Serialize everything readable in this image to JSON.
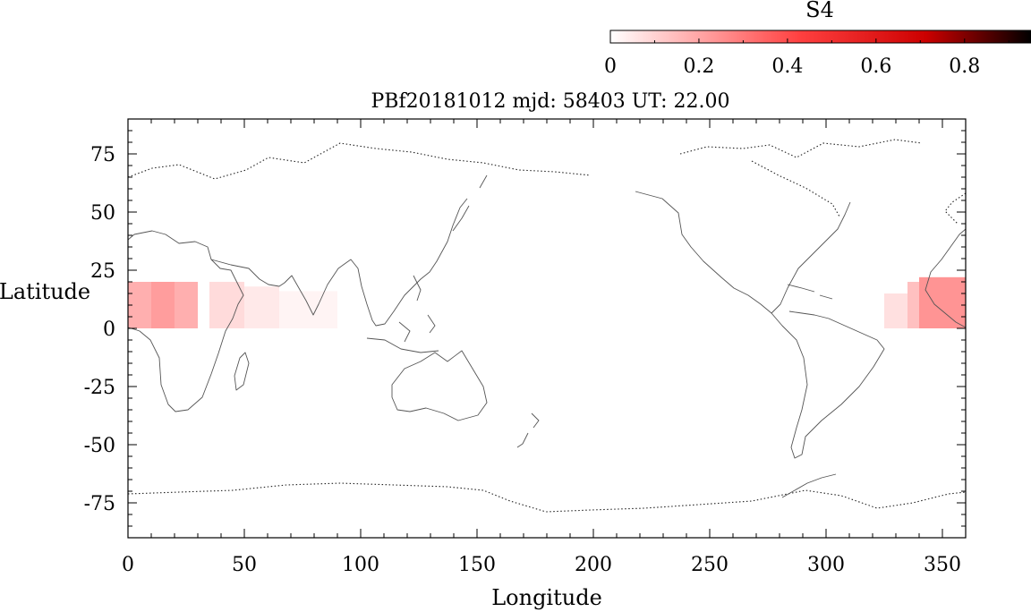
{
  "title": "PBf20181012  mjd: 58403  UT:  22.00",
  "colorbar": {
    "label": "S4",
    "range": [
      0,
      0.95
    ],
    "ticks": [
      0,
      0.2,
      0.4,
      0.6,
      0.8
    ],
    "tick_labels": [
      "0",
      "0.2",
      "0.4",
      "0.6",
      "0.8"
    ],
    "colors": [
      "#ffffff",
      "#ff4040",
      "#cc0000",
      "#000000"
    ]
  },
  "chart_data": {
    "type": "heatmap",
    "title": "PBf20181012  mjd: 58403  UT:  22.00",
    "xlabel": "Longitude",
    "ylabel": "Latitude",
    "xlim": [
      0,
      360
    ],
    "ylim": [
      -90,
      90
    ],
    "x_ticks": [
      0,
      50,
      100,
      150,
      200,
      250,
      300,
      350
    ],
    "x_tick_labels": [
      "0",
      "50",
      "100",
      "150",
      "200",
      "250",
      "300",
      "350"
    ],
    "y_ticks": [
      75,
      50,
      25,
      0,
      -25,
      -50,
      -75
    ],
    "y_tick_labels": [
      "75",
      "50",
      "25",
      "0",
      "-25",
      "-50",
      "-75"
    ],
    "cells": [
      {
        "lon": [
          0,
          10
        ],
        "lat": [
          0,
          20
        ],
        "s4": 0.18
      },
      {
        "lon": [
          10,
          20
        ],
        "lat": [
          0,
          20
        ],
        "s4": 0.22
      },
      {
        "lon": [
          20,
          30
        ],
        "lat": [
          0,
          20
        ],
        "s4": 0.18
      },
      {
        "lon": [
          35,
          50
        ],
        "lat": [
          0,
          20
        ],
        "s4": 0.08
      },
      {
        "lon": [
          50,
          65
        ],
        "lat": [
          0,
          18
        ],
        "s4": 0.05
      },
      {
        "lon": [
          65,
          90
        ],
        "lat": [
          0,
          16
        ],
        "s4": 0.025
      },
      {
        "lon": [
          325,
          335
        ],
        "lat": [
          0,
          15
        ],
        "s4": 0.07
      },
      {
        "lon": [
          335,
          340
        ],
        "lat": [
          0,
          20
        ],
        "s4": 0.14
      },
      {
        "lon": [
          340,
          360
        ],
        "lat": [
          0,
          22
        ],
        "s4": 0.24
      }
    ]
  }
}
